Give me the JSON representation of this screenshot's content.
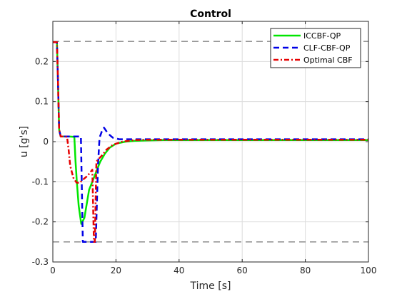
{
  "chart_data": {
    "type": "line",
    "title": "Control",
    "xlabel": "Time [s]",
    "ylabel": "u [g's]",
    "xlim": [
      0,
      100
    ],
    "ylim": [
      -0.3,
      0.3
    ],
    "xticks": [
      0,
      20,
      40,
      60,
      80,
      100
    ],
    "yticks": [
      -0.3,
      -0.2,
      -0.1,
      0,
      0.1,
      0.2
    ],
    "xtick_labels": [
      "0",
      "20",
      "40",
      "60",
      "80",
      "100"
    ],
    "ytick_labels": [
      "-0.3",
      "-0.2",
      "-0.1",
      "0",
      "0.1",
      "0.2"
    ],
    "grid": true,
    "legend_position": "top-right",
    "reference_lines": [
      {
        "y": 0.25,
        "color": "#555555",
        "style": "dashed"
      },
      {
        "y": -0.25,
        "color": "#555555",
        "style": "dashed"
      }
    ],
    "series": [
      {
        "name": "ICCBF-QP",
        "color": "#00e600",
        "style": "solid",
        "x": [
          0,
          1.3,
          1.6,
          2.0,
          2.5,
          3.5,
          5.0,
          6.8,
          7.2,
          7.6,
          8.2,
          9.0,
          10.0,
          11.5,
          13.0,
          14.0,
          15.0,
          16.5,
          18.0,
          20.0,
          23.0,
          26.0,
          30.0,
          35.0,
          50.0,
          100.0
        ],
        "y": [
          0.248,
          0.248,
          0.16,
          0.03,
          0.013,
          0.013,
          0.013,
          0.012,
          -0.05,
          -0.1,
          -0.16,
          -0.205,
          -0.19,
          -0.12,
          -0.09,
          -0.07,
          -0.05,
          -0.03,
          -0.015,
          -0.005,
          0.0,
          0.002,
          0.003,
          0.004,
          0.004,
          0.004
        ]
      },
      {
        "name": "CLF-CBF-QP",
        "color": "#0000e6",
        "style": "dashed",
        "x": [
          0,
          1.3,
          1.6,
          2.0,
          2.5,
          3.5,
          6.0,
          8.3,
          8.9,
          9.5,
          10.5,
          12.0,
          13.0,
          13.6,
          14.3,
          14.8,
          15.5,
          16.2,
          17.5,
          19.0,
          21.0,
          25.0,
          30.0,
          40.0,
          60.0,
          100.0
        ],
        "y": [
          0.248,
          0.248,
          0.16,
          0.03,
          0.013,
          0.013,
          0.013,
          0.013,
          0.013,
          -0.25,
          -0.25,
          -0.25,
          -0.25,
          -0.25,
          -0.06,
          0.01,
          0.025,
          0.035,
          0.02,
          0.01,
          0.006,
          0.006,
          0.006,
          0.006,
          0.006,
          0.006
        ]
      },
      {
        "name": "Optimal CBF",
        "color": "#e60000",
        "style": "dashdot",
        "x": [
          0,
          1.3,
          1.6,
          2.0,
          2.5,
          3.5,
          4.5,
          5.0,
          5.5,
          6.5,
          7.5,
          8.5,
          9.5,
          11.0,
          12.5,
          13.0,
          13.3,
          13.8,
          14.3,
          15.5,
          17.0,
          19.0,
          22.0,
          26.0,
          30.0,
          40.0,
          100.0
        ],
        "y": [
          0.248,
          0.248,
          0.16,
          0.03,
          0.013,
          0.013,
          0.012,
          -0.02,
          -0.06,
          -0.09,
          -0.102,
          -0.103,
          -0.095,
          -0.085,
          -0.07,
          -0.25,
          -0.25,
          -0.05,
          -0.045,
          -0.035,
          -0.02,
          -0.008,
          0.0,
          0.004,
          0.005,
          0.005,
          0.005
        ]
      }
    ]
  }
}
